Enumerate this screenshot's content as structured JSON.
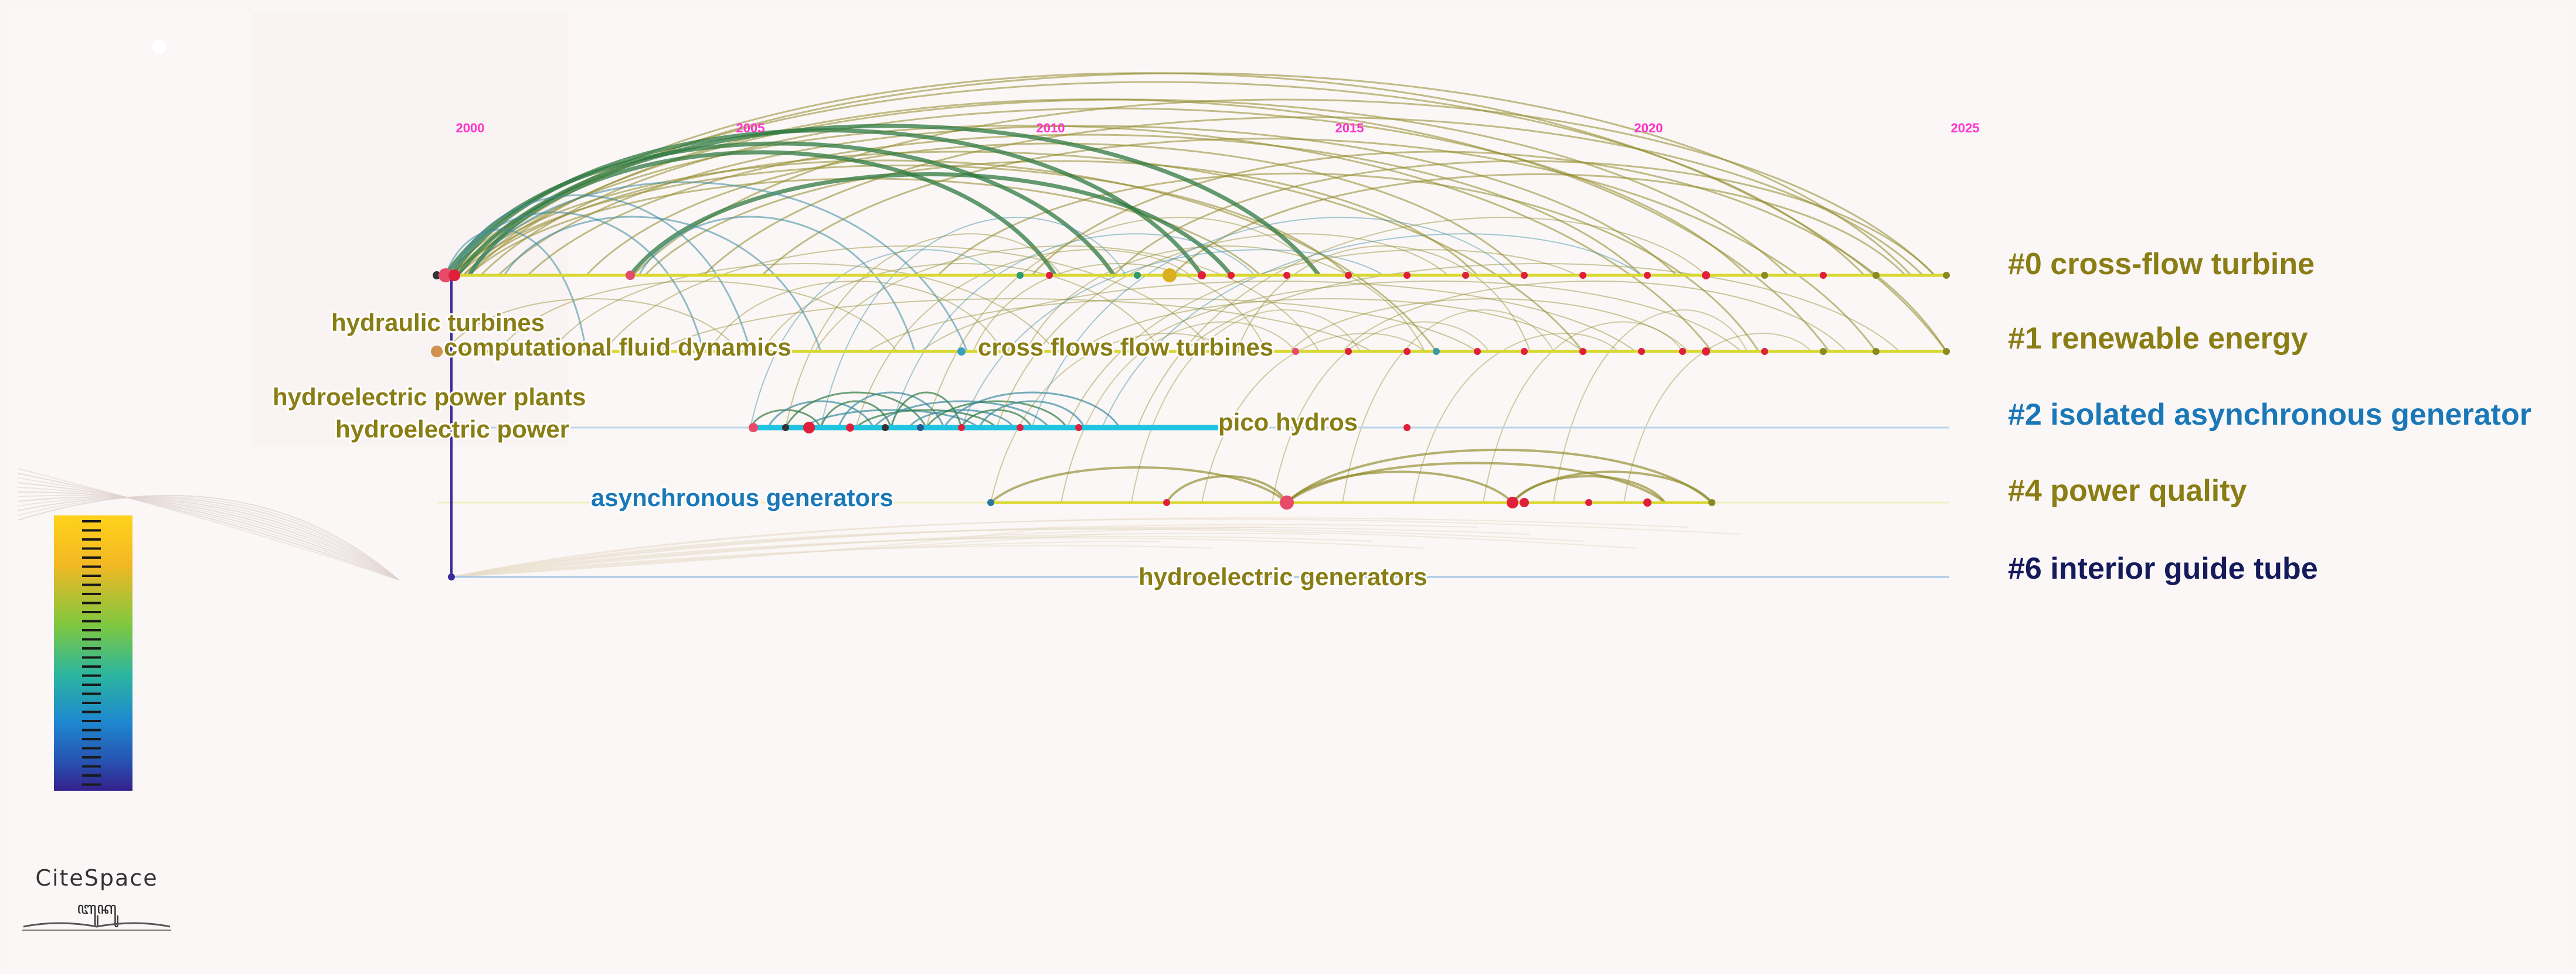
{
  "years": [
    "2000",
    "2005",
    "2010",
    "2015",
    "2020",
    "2025"
  ],
  "clusters": [
    {
      "label": "#0 cross-flow turbine",
      "color": "#8a7d14"
    },
    {
      "label": "#1 renewable energy",
      "color": "#8a7d14"
    },
    {
      "label": "#2 isolated asynchronous generator",
      "color": "#1a78b8"
    },
    {
      "label": "#4 power quality",
      "color": "#8a7d14"
    },
    {
      "label": "#6 interior guide tube",
      "color": "#141a5a"
    }
  ],
  "keywords": [
    {
      "text": "hydraulic turbines",
      "color": "#8a7d14"
    },
    {
      "text": "computational fluid dynamics",
      "color": "#8a7d14"
    },
    {
      "text": "hydroelectric power plants",
      "color": "#8a7d14"
    },
    {
      "text": "hydroelectric power",
      "color": "#8a7d14"
    },
    {
      "text": "cross flows flow turbines",
      "color": "#8a7d14"
    },
    {
      "text": "pico hydros",
      "color": "#8a7d14"
    },
    {
      "text": "asynchronous generators",
      "color": "#1a78b8"
    },
    {
      "text": "hydroelectric generators",
      "color": "#8a7d14"
    }
  ],
  "brand": {
    "name": "CiteSpace",
    "subtitle": "ꦧꦸꦏꦸ"
  },
  "colors": {
    "year": "#ff33cc",
    "timeline_yellow": "#d8d830",
    "timeline_cyan": "#1ec4e0",
    "arc_olive": "#8f8a28",
    "arc_green": "#2f7a40",
    "arc_teal": "#3a8aa0",
    "node_red": "#e0203a",
    "legend_gradient": [
      "#ffd21a",
      "#f0b020",
      "#7ec840",
      "#2bb5a0",
      "#1e88d0",
      "#2850b0",
      "#35208a"
    ]
  }
}
